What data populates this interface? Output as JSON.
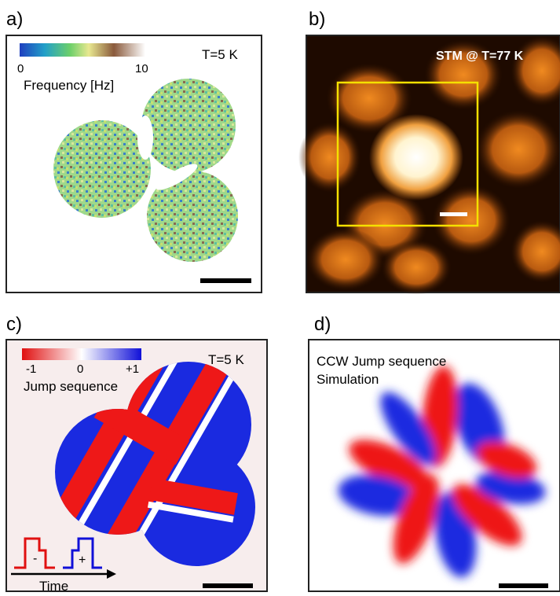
{
  "panels": [
    {
      "label": "a)",
      "temperature": "T=5 K",
      "colorbar": {
        "min": "0",
        "max": "10",
        "title": "Frequency [Hz]"
      }
    },
    {
      "label": "b)",
      "title": "STM @ T=77 K"
    },
    {
      "label": "c)",
      "temperature": "T=5 K",
      "colorbar": {
        "min": "-1",
        "mid": "0",
        "max": "+1",
        "title": "Jump sequence"
      },
      "pulses": [
        "-",
        "+"
      ],
      "axis": "Time"
    },
    {
      "label": "d)",
      "title": "CCW Jump sequence",
      "subtitle": "Simulation"
    }
  ]
}
